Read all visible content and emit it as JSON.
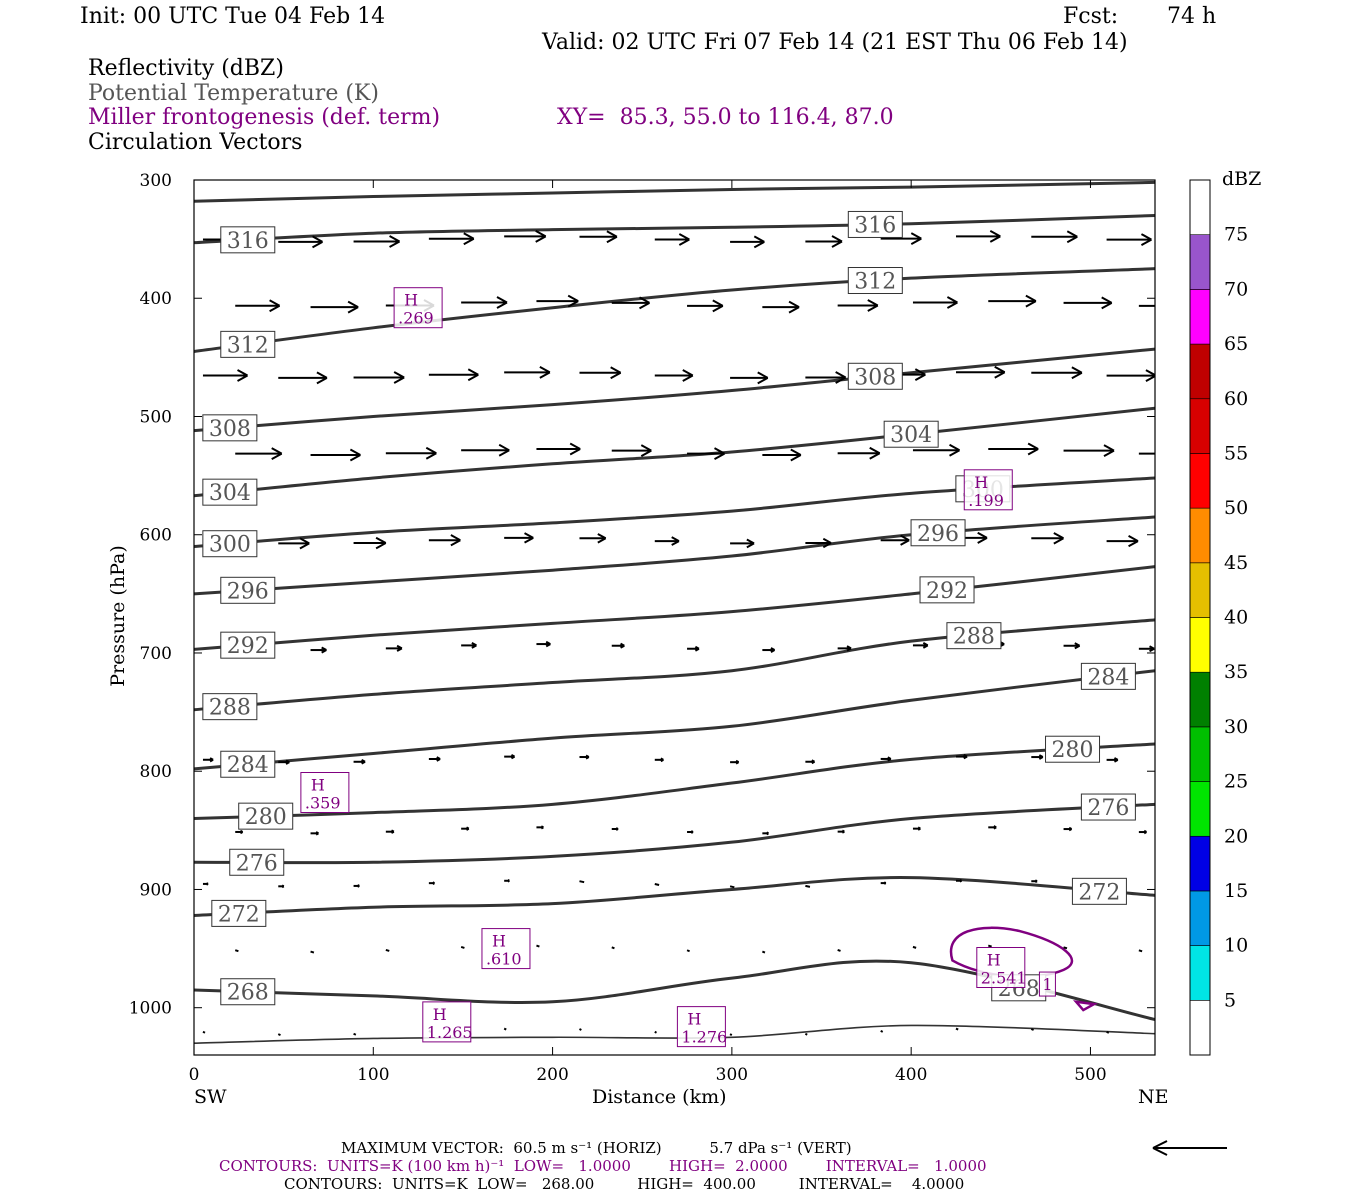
{
  "header": {
    "init": "Init: 00 UTC Tue 04 Feb 14",
    "fcst_label": "Fcst:",
    "fcst_value": "74 h",
    "valid": "Valid: 02 UTC Fri 07 Feb 14 (21 EST Thu 06 Feb 14)",
    "field1": "Reflectivity (dBZ)",
    "field2": "Potential Temperature (K)",
    "field3": "Miller frontogenesis (def. term)",
    "xy": "XY=  85.3, 55.0 to 116.4, 87.0",
    "field4": "Circulation Vectors"
  },
  "colors": {
    "theta": "#333333",
    "frontogenesis": "#800080",
    "vectors": "#000000"
  },
  "chart_data": {
    "type": "line",
    "xlabel": "Distance (km)",
    "ylabel": "Pressure (hPa)",
    "xlim": [
      0,
      536
    ],
    "ylim": [
      1040,
      300
    ],
    "x_ticks": [
      0,
      100,
      200,
      300,
      400,
      500
    ],
    "y_ticks": [
      300,
      400,
      500,
      600,
      700,
      800,
      900,
      1000
    ],
    "x_end_labels": {
      "left": "SW",
      "right": "NE"
    },
    "theta_series": [
      {
        "name": "theta",
        "label": "",
        "x": [
          0,
          100,
          200,
          300,
          400,
          536
        ],
        "p": [
          318,
          314,
          311,
          308,
          306,
          302
        ]
      },
      {
        "name": "theta",
        "label": "316",
        "x": [
          0,
          100,
          200,
          300,
          400,
          536
        ],
        "p": [
          353,
          345,
          342,
          340,
          337,
          330
        ]
      },
      {
        "name": "theta",
        "label": "312",
        "x": [
          0,
          100,
          200,
          300,
          400,
          536
        ],
        "p": [
          445,
          425,
          408,
          393,
          383,
          375
        ]
      },
      {
        "name": "theta",
        "label": "308",
        "x": [
          0,
          100,
          200,
          300,
          400,
          536
        ],
        "p": [
          512,
          500,
          490,
          478,
          463,
          443
        ]
      },
      {
        "name": "theta",
        "label": "304",
        "x": [
          0,
          100,
          200,
          300,
          400,
          536
        ],
        "p": [
          567,
          552,
          540,
          530,
          515,
          493
        ]
      },
      {
        "name": "theta",
        "label": "300",
        "x": [
          0,
          100,
          200,
          300,
          400,
          536
        ],
        "p": [
          610,
          598,
          590,
          580,
          565,
          552
        ]
      },
      {
        "name": "theta",
        "label": "296",
        "x": [
          0,
          100,
          200,
          300,
          400,
          536
        ],
        "p": [
          650,
          640,
          630,
          618,
          600,
          585
        ]
      },
      {
        "name": "theta",
        "label": "292",
        "x": [
          0,
          100,
          200,
          300,
          400,
          536
        ],
        "p": [
          697,
          685,
          675,
          665,
          650,
          627
        ]
      },
      {
        "name": "theta",
        "label": "288",
        "x": [
          0,
          100,
          200,
          300,
          400,
          536
        ],
        "p": [
          748,
          735,
          725,
          715,
          690,
          672
        ]
      },
      {
        "name": "theta",
        "label": "284",
        "x": [
          0,
          100,
          200,
          300,
          400,
          536
        ],
        "p": [
          798,
          785,
          772,
          762,
          740,
          715
        ]
      },
      {
        "name": "theta",
        "label": "280",
        "x": [
          0,
          100,
          200,
          300,
          400,
          536
        ],
        "p": [
          840,
          835,
          828,
          810,
          790,
          777
        ]
      },
      {
        "name": "theta",
        "label": "276",
        "x": [
          0,
          100,
          200,
          300,
          400,
          536
        ],
        "p": [
          877,
          877,
          872,
          860,
          840,
          828
        ]
      },
      {
        "name": "theta",
        "label": "272",
        "x": [
          0,
          100,
          200,
          300,
          400,
          536
        ],
        "p": [
          922,
          915,
          912,
          900,
          890,
          905
        ]
      },
      {
        "name": "theta",
        "label": "268",
        "x": [
          0,
          100,
          200,
          300,
          400,
          536
        ],
        "p": [
          985,
          990,
          995,
          975,
          962,
          1010
        ]
      },
      {
        "name": "theta",
        "label": "",
        "x": [
          0,
          100,
          200,
          300,
          400,
          536
        ],
        "p": [
          1030,
          1026,
          1025,
          1025,
          1015,
          1022
        ]
      }
    ],
    "theta_label_values": [
      "316",
      "312",
      "312",
      "308",
      "308",
      "304",
      "304",
      "300",
      "300",
      "300",
      "296",
      "296",
      "292",
      "292",
      "292",
      "288",
      "288",
      "284",
      "284",
      "280",
      "280",
      "276",
      "276",
      "272",
      "272",
      "268",
      "268"
    ],
    "frontogenesis_maxima": [
      {
        "letter": "H",
        "value": ".269",
        "x": 125,
        "p": 408
      },
      {
        "letter": "H",
        "value": ".199",
        "x": 443,
        "p": 562
      },
      {
        "letter": "H",
        "value": ".359",
        "x": 73,
        "p": 818
      },
      {
        "letter": "H",
        "value": ".610",
        "x": 174,
        "p": 950
      },
      {
        "letter": "H",
        "value": "2.541",
        "x": 450,
        "p": 966
      },
      {
        "letter": "",
        "value": "1",
        "x": 476,
        "p": 980
      },
      {
        "letter": "H",
        "value": "1.265",
        "x": 141,
        "p": 1012
      },
      {
        "letter": "H",
        "value": "1.276",
        "x": 283,
        "p": 1016
      }
    ],
    "frontogenesis_contour_value": 1,
    "vector_rows": [
      {
        "p": 350,
        "u": 40,
        "w": 0
      },
      {
        "p": 405,
        "u": 42,
        "w": 0
      },
      {
        "p": 465,
        "u": 44,
        "w": 0
      },
      {
        "p": 530,
        "u": 44,
        "w": 0
      },
      {
        "p": 605,
        "u": 28,
        "w": 0
      },
      {
        "p": 695,
        "u": 14,
        "w": 0
      },
      {
        "p": 790,
        "u": 10,
        "w": 0
      },
      {
        "p": 850,
        "u": 7,
        "w": 0
      },
      {
        "p": 895,
        "u": 5,
        "w": 0
      },
      {
        "p": 950,
        "u": 3,
        "w": 0
      },
      {
        "p": 1020,
        "u": 2,
        "w": 0
      }
    ],
    "colorbar": {
      "title": "dBZ",
      "labels": [
        "5",
        "10",
        "15",
        "20",
        "25",
        "30",
        "35",
        "40",
        "45",
        "50",
        "55",
        "60",
        "65",
        "70",
        "75"
      ],
      "colors": [
        "#ffffff",
        "#00e5e5",
        "#0099e5",
        "#0000e5",
        "#00e500",
        "#00bf00",
        "#008000",
        "#ffff00",
        "#e5bf00",
        "#ff8c00",
        "#ff0000",
        "#d80000",
        "#bf0000",
        "#ff00ff",
        "#9955cc",
        "#ffffff"
      ]
    }
  },
  "footer": {
    "max_vector": "MAXIMUM VECTOR:  60.5 m s⁻¹ (HORIZ)          5.7 dPa s⁻¹ (VERT)",
    "contours_purple": "CONTOURS:  UNITS=K (100 km h)⁻¹  LOW=   1.0000        HIGH=  2.0000        INTERVAL=   1.0000",
    "contours_black": "CONTOURS:  UNITS=K  LOW=   268.00         HIGH=  400.00         INTERVAL=    4.0000"
  }
}
